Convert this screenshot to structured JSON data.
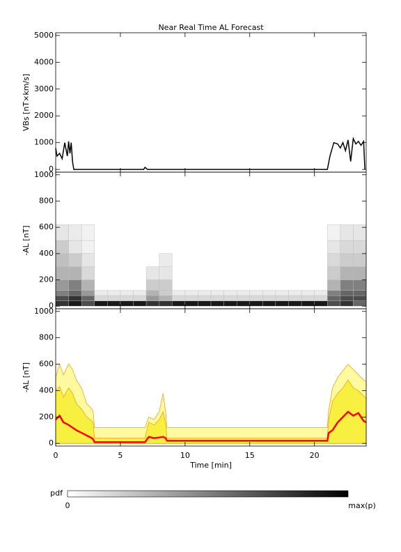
{
  "chart_data": [
    {
      "type": "line",
      "title": "Near Real Time AL Forecast",
      "ylabel": "VBs [nT×km/s]",
      "xlim": [
        0,
        24
      ],
      "xticks": [
        0,
        5,
        10,
        15,
        20
      ],
      "ylim": [
        -100,
        5100
      ],
      "yticks": [
        0,
        1000,
        2000,
        3000,
        4000,
        5000
      ],
      "x": [
        0,
        0.1,
        0.3,
        0.5,
        0.7,
        0.9,
        1.0,
        1.1,
        1.2,
        1.3,
        1.4,
        1.6,
        6.8,
        6.9,
        7.0,
        7.1,
        21.0,
        21.2,
        21.5,
        21.8,
        22.0,
        22.2,
        22.4,
        22.6,
        22.8,
        23.0,
        23.2,
        23.4,
        23.6,
        23.8,
        23.9
      ],
      "series": [
        {
          "color": "#000000",
          "values": [
            800,
            500,
            600,
            400,
            1000,
            500,
            1050,
            600,
            1000,
            300,
            0,
            0,
            0,
            80,
            40,
            0,
            0,
            500,
            1000,
            950,
            800,
            1000,
            700,
            1100,
            300,
            1150,
            950,
            1050,
            900,
            1050,
            0
          ]
        }
      ]
    },
    {
      "type": "heatmap",
      "ylabel": "-AL [nT]",
      "xlim": [
        0,
        24
      ],
      "xticks": [
        0,
        5,
        10,
        15,
        20
      ],
      "ylim": [
        -20,
        1020
      ],
      "yticks": [
        0,
        200,
        400,
        600,
        800,
        1000
      ],
      "x_edges": [
        0,
        1,
        2,
        3,
        4,
        5,
        6,
        7,
        8,
        9,
        10,
        11,
        12,
        13,
        14,
        15,
        16,
        17,
        18,
        19,
        20,
        21,
        22,
        23,
        24
      ],
      "y_edges": [
        0,
        40,
        80,
        120,
        200,
        300,
        400,
        500,
        620
      ],
      "z": [
        [
          0.8,
          0.9,
          0.7,
          0.9,
          0.9,
          0.9,
          0.9,
          0.8,
          0.8,
          0.9,
          0.9,
          0.9,
          0.9,
          0.9,
          0.9,
          0.9,
          0.9,
          0.9,
          0.9,
          0.9,
          0.9,
          0.7,
          0.8,
          0.6
        ],
        [
          0.7,
          0.8,
          0.6,
          0.15,
          0.15,
          0.15,
          0.15,
          0.4,
          0.3,
          0.15,
          0.15,
          0.15,
          0.15,
          0.15,
          0.15,
          0.15,
          0.15,
          0.15,
          0.15,
          0.15,
          0.15,
          0.6,
          0.7,
          0.7
        ],
        [
          0.5,
          0.6,
          0.4,
          0.08,
          0.08,
          0.08,
          0.08,
          0.3,
          0.2,
          0.08,
          0.08,
          0.08,
          0.08,
          0.08,
          0.08,
          0.08,
          0.08,
          0.08,
          0.08,
          0.08,
          0.08,
          0.5,
          0.6,
          0.6
        ],
        [
          0.4,
          0.5,
          0.3,
          0,
          0,
          0,
          0,
          0.2,
          0.2,
          0,
          0,
          0,
          0,
          0,
          0,
          0,
          0,
          0,
          0,
          0,
          0,
          0.3,
          0.5,
          0.5
        ],
        [
          0.3,
          0.3,
          0.15,
          0,
          0,
          0,
          0,
          0.1,
          0.1,
          0,
          0,
          0,
          0,
          0,
          0,
          0,
          0,
          0,
          0,
          0,
          0,
          0.2,
          0.3,
          0.3
        ],
        [
          0.25,
          0.2,
          0.1,
          0,
          0,
          0,
          0,
          0,
          0.08,
          0,
          0,
          0,
          0,
          0,
          0,
          0,
          0,
          0,
          0,
          0,
          0,
          0.15,
          0.2,
          0.2
        ],
        [
          0.2,
          0.1,
          0.05,
          0,
          0,
          0,
          0,
          0,
          0,
          0,
          0,
          0,
          0,
          0,
          0,
          0,
          0,
          0,
          0,
          0,
          0,
          0.1,
          0.15,
          0.15
        ],
        [
          0.1,
          0.08,
          0.05,
          0,
          0,
          0,
          0,
          0,
          0,
          0,
          0,
          0,
          0,
          0,
          0,
          0,
          0,
          0,
          0,
          0,
          0,
          0.05,
          0.1,
          0.1
        ]
      ]
    },
    {
      "type": "band",
      "ylabel": "-AL [nT]",
      "xlabel": "Time [min]",
      "xlim": [
        0,
        24
      ],
      "xticks": [
        0,
        5,
        10,
        15,
        20
      ],
      "ylim": [
        -20,
        1020
      ],
      "yticks": [
        0,
        200,
        400,
        600,
        800,
        1000
      ],
      "x": [
        0,
        0.3,
        0.6,
        1,
        1.3,
        1.6,
        2,
        2.4,
        2.8,
        2.9,
        3,
        6.8,
        6.9,
        7.2,
        7.6,
        8,
        8.3,
        8.5,
        8.6,
        21,
        21.1,
        21.4,
        21.8,
        22.2,
        22.6,
        23,
        23.4,
        23.8,
        24
      ],
      "series": [
        {
          "color": "#fffaa0",
          "values": [
            500,
            600,
            520,
            600,
            560,
            480,
            420,
            300,
            260,
            240,
            120,
            120,
            120,
            200,
            180,
            240,
            380,
            240,
            120,
            120,
            250,
            420,
            500,
            550,
            600,
            560,
            520,
            480,
            470
          ]
        },
        {
          "color": "#f8f040",
          "values": [
            400,
            430,
            350,
            420,
            380,
            300,
            260,
            200,
            170,
            150,
            40,
            40,
            40,
            160,
            140,
            180,
            240,
            150,
            40,
            40,
            180,
            320,
            380,
            420,
            480,
            420,
            400,
            360,
            340
          ]
        },
        {
          "color": "#ff0000",
          "values": [
            180,
            210,
            160,
            140,
            120,
            100,
            80,
            60,
            40,
            30,
            10,
            10,
            10,
            50,
            40,
            45,
            50,
            40,
            20,
            20,
            80,
            100,
            160,
            200,
            240,
            210,
            230,
            170,
            160
          ]
        }
      ]
    }
  ],
  "colorbar": {
    "label": "pdf",
    "min_label": "0",
    "max_label": "max(p)"
  }
}
